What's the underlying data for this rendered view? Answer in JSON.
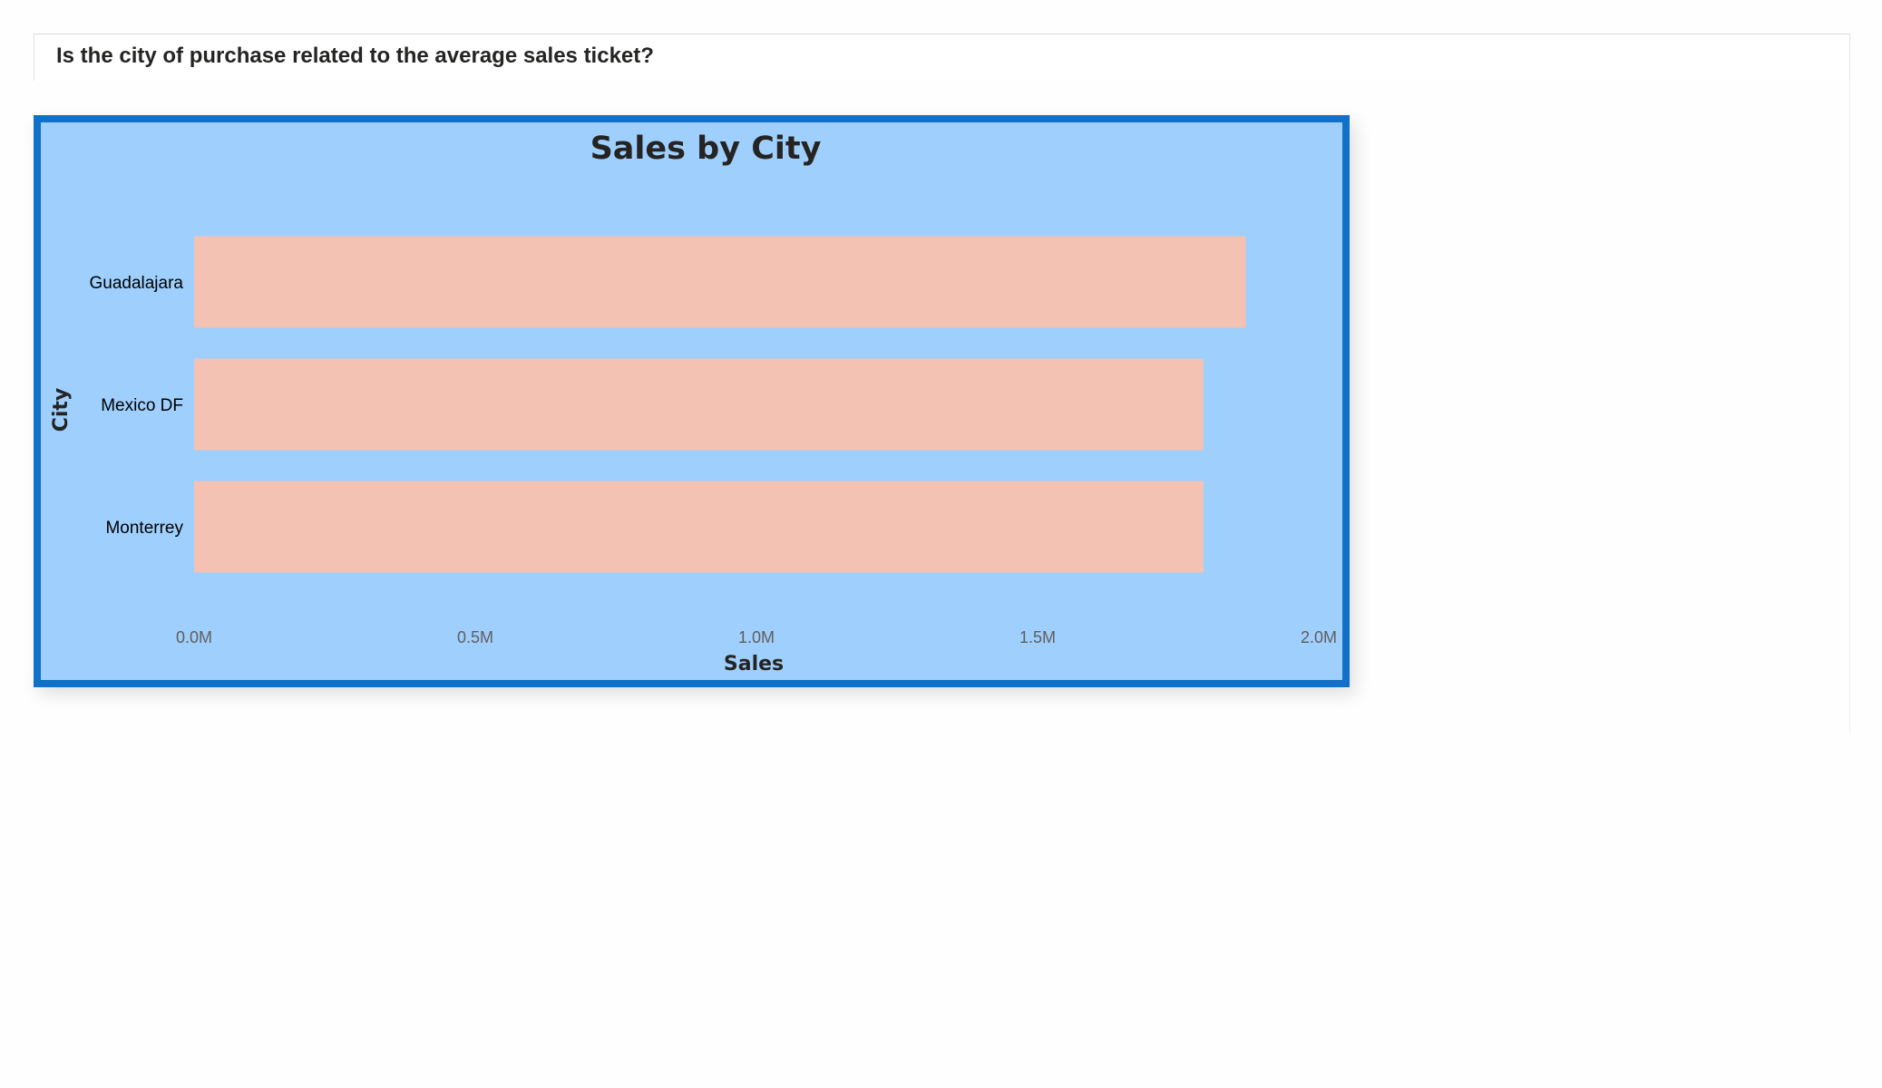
{
  "page": {
    "question": "Is the city of purchase related to the average sales ticket?"
  },
  "colors": {
    "visual_background": "#9fcffd",
    "visual_border": "#1170c9",
    "bar_fill": "#f4c2b2",
    "text_dark": "#252423",
    "tick_text": "#605e5c"
  },
  "chart_data": {
    "type": "bar",
    "orientation": "horizontal",
    "title": "Sales by City",
    "xlabel": "Sales",
    "ylabel": "City",
    "categories": [
      "Guadalajara",
      "Mexico DF",
      "Monterrey"
    ],
    "values": [
      1870000,
      1795000,
      1795000
    ],
    "xlim": [
      0,
      2000000
    ],
    "xticks": [
      0,
      500000,
      1000000,
      1500000,
      2000000
    ],
    "xtick_labels": [
      "0.0M",
      "0.5M",
      "1.0M",
      "1.5M",
      "2.0M"
    ],
    "grid": false,
    "legend": "none"
  }
}
